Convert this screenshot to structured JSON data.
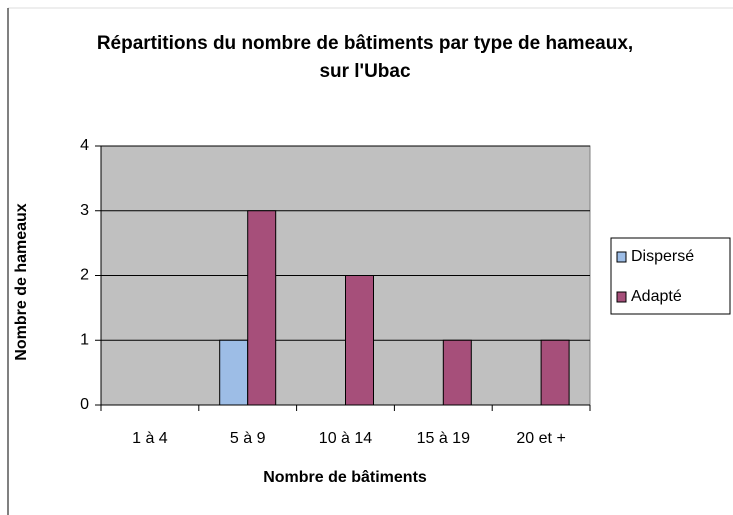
{
  "chart_data": {
    "type": "bar",
    "title": "Répartitions du nombre de bâtiments par type de hameaux, sur l'Ubac",
    "x_label": "Nombre de bâtiments",
    "y_label": "Nombre de hameaux",
    "categories": [
      "1 à 4",
      "5 à 9",
      "10 à 14",
      "15 à 19",
      "20 et +"
    ],
    "series": [
      {
        "name": "Dispersé",
        "color": "#9dbde6",
        "values": [
          0,
          1,
          0,
          0,
          0
        ]
      },
      {
        "name": "Adapté",
        "color": "#a64f7a",
        "values": [
          0,
          3,
          2,
          1,
          1
        ]
      }
    ],
    "ylim": [
      0,
      4
    ],
    "yticks": [
      0,
      1,
      2,
      3,
      4
    ],
    "grid": true,
    "legend": "right"
  }
}
